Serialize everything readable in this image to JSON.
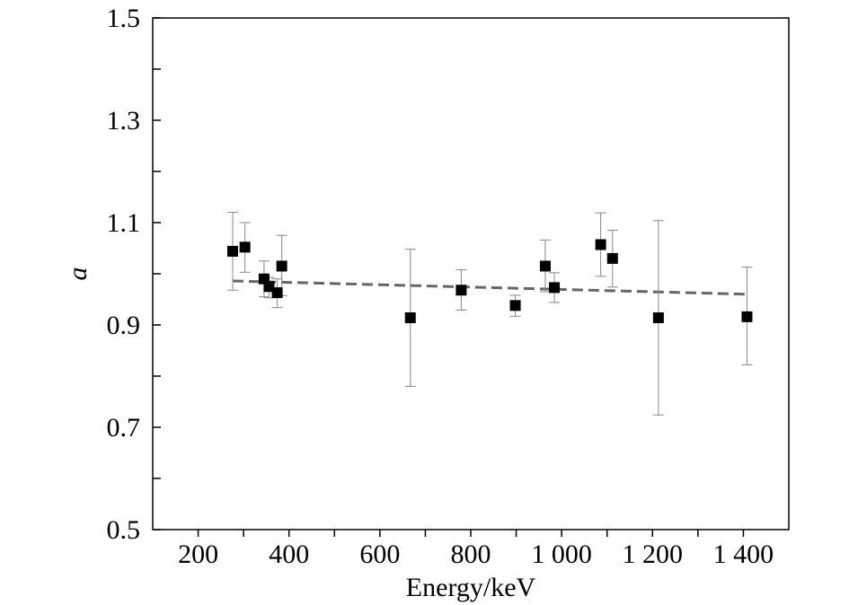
{
  "chart_data": {
    "type": "scatter",
    "title": "",
    "xlabel": "Energy/keV",
    "ylabel": "a",
    "xlim": [
      100,
      1500
    ],
    "ylim": [
      0.5,
      1.5
    ],
    "x_ticks": [
      {
        "value": 200,
        "label": "200"
      },
      {
        "value": 400,
        "label": "400"
      },
      {
        "value": 600,
        "label": "600"
      },
      {
        "value": 800,
        "label": "800"
      },
      {
        "value": 1000,
        "label": "1 000"
      },
      {
        "value": 1200,
        "label": "1 200"
      },
      {
        "value": 1400,
        "label": "1 400"
      }
    ],
    "y_ticks": [
      {
        "value": 0.5,
        "label": "0.5"
      },
      {
        "value": 0.7,
        "label": "0.7"
      },
      {
        "value": 0.9,
        "label": "0.9"
      },
      {
        "value": 1.1,
        "label": "1.1"
      },
      {
        "value": 1.3,
        "label": "1.3"
      },
      {
        "value": 1.5,
        "label": "1.5"
      }
    ],
    "y_minor_step": 0.1,
    "x_minor_step": 100,
    "grid": false,
    "legend": "none",
    "points": [
      {
        "x": 276,
        "y": 1.044,
        "lo": 0.968,
        "hi": 1.12
      },
      {
        "x": 303,
        "y": 1.052,
        "lo": 1.003,
        "hi": 1.1
      },
      {
        "x": 345,
        "y": 0.99,
        "lo": 0.955,
        "hi": 1.025
      },
      {
        "x": 356,
        "y": 0.975,
        "lo": 0.953,
        "hi": 0.993
      },
      {
        "x": 374,
        "y": 0.963,
        "lo": 0.934,
        "hi": 0.99
      },
      {
        "x": 384,
        "y": 1.015,
        "lo": 0.957,
        "hi": 1.075
      },
      {
        "x": 667,
        "y": 0.914,
        "lo": 0.78,
        "hi": 1.048
      },
      {
        "x": 779,
        "y": 0.968,
        "lo": 0.929,
        "hi": 1.008
      },
      {
        "x": 898,
        "y": 0.938,
        "lo": 0.917,
        "hi": 0.958
      },
      {
        "x": 964,
        "y": 1.015,
        "lo": 0.965,
        "hi": 1.066
      },
      {
        "x": 984,
        "y": 0.973,
        "lo": 0.944,
        "hi": 1.002
      },
      {
        "x": 1086,
        "y": 1.057,
        "lo": 0.995,
        "hi": 1.119
      },
      {
        "x": 1112,
        "y": 1.03,
        "lo": 0.974,
        "hi": 1.085
      },
      {
        "x": 1213,
        "y": 0.914,
        "lo": 0.724,
        "hi": 1.104
      },
      {
        "x": 1408,
        "y": 0.916,
        "lo": 0.822,
        "hi": 1.013
      }
    ],
    "fit_line": {
      "style": "dashed",
      "color": "#666666",
      "x": [
        276,
        1408
      ],
      "y": [
        0.986,
        0.96
      ]
    },
    "marker_color": "#000000",
    "errorbar_color": "#888888"
  }
}
